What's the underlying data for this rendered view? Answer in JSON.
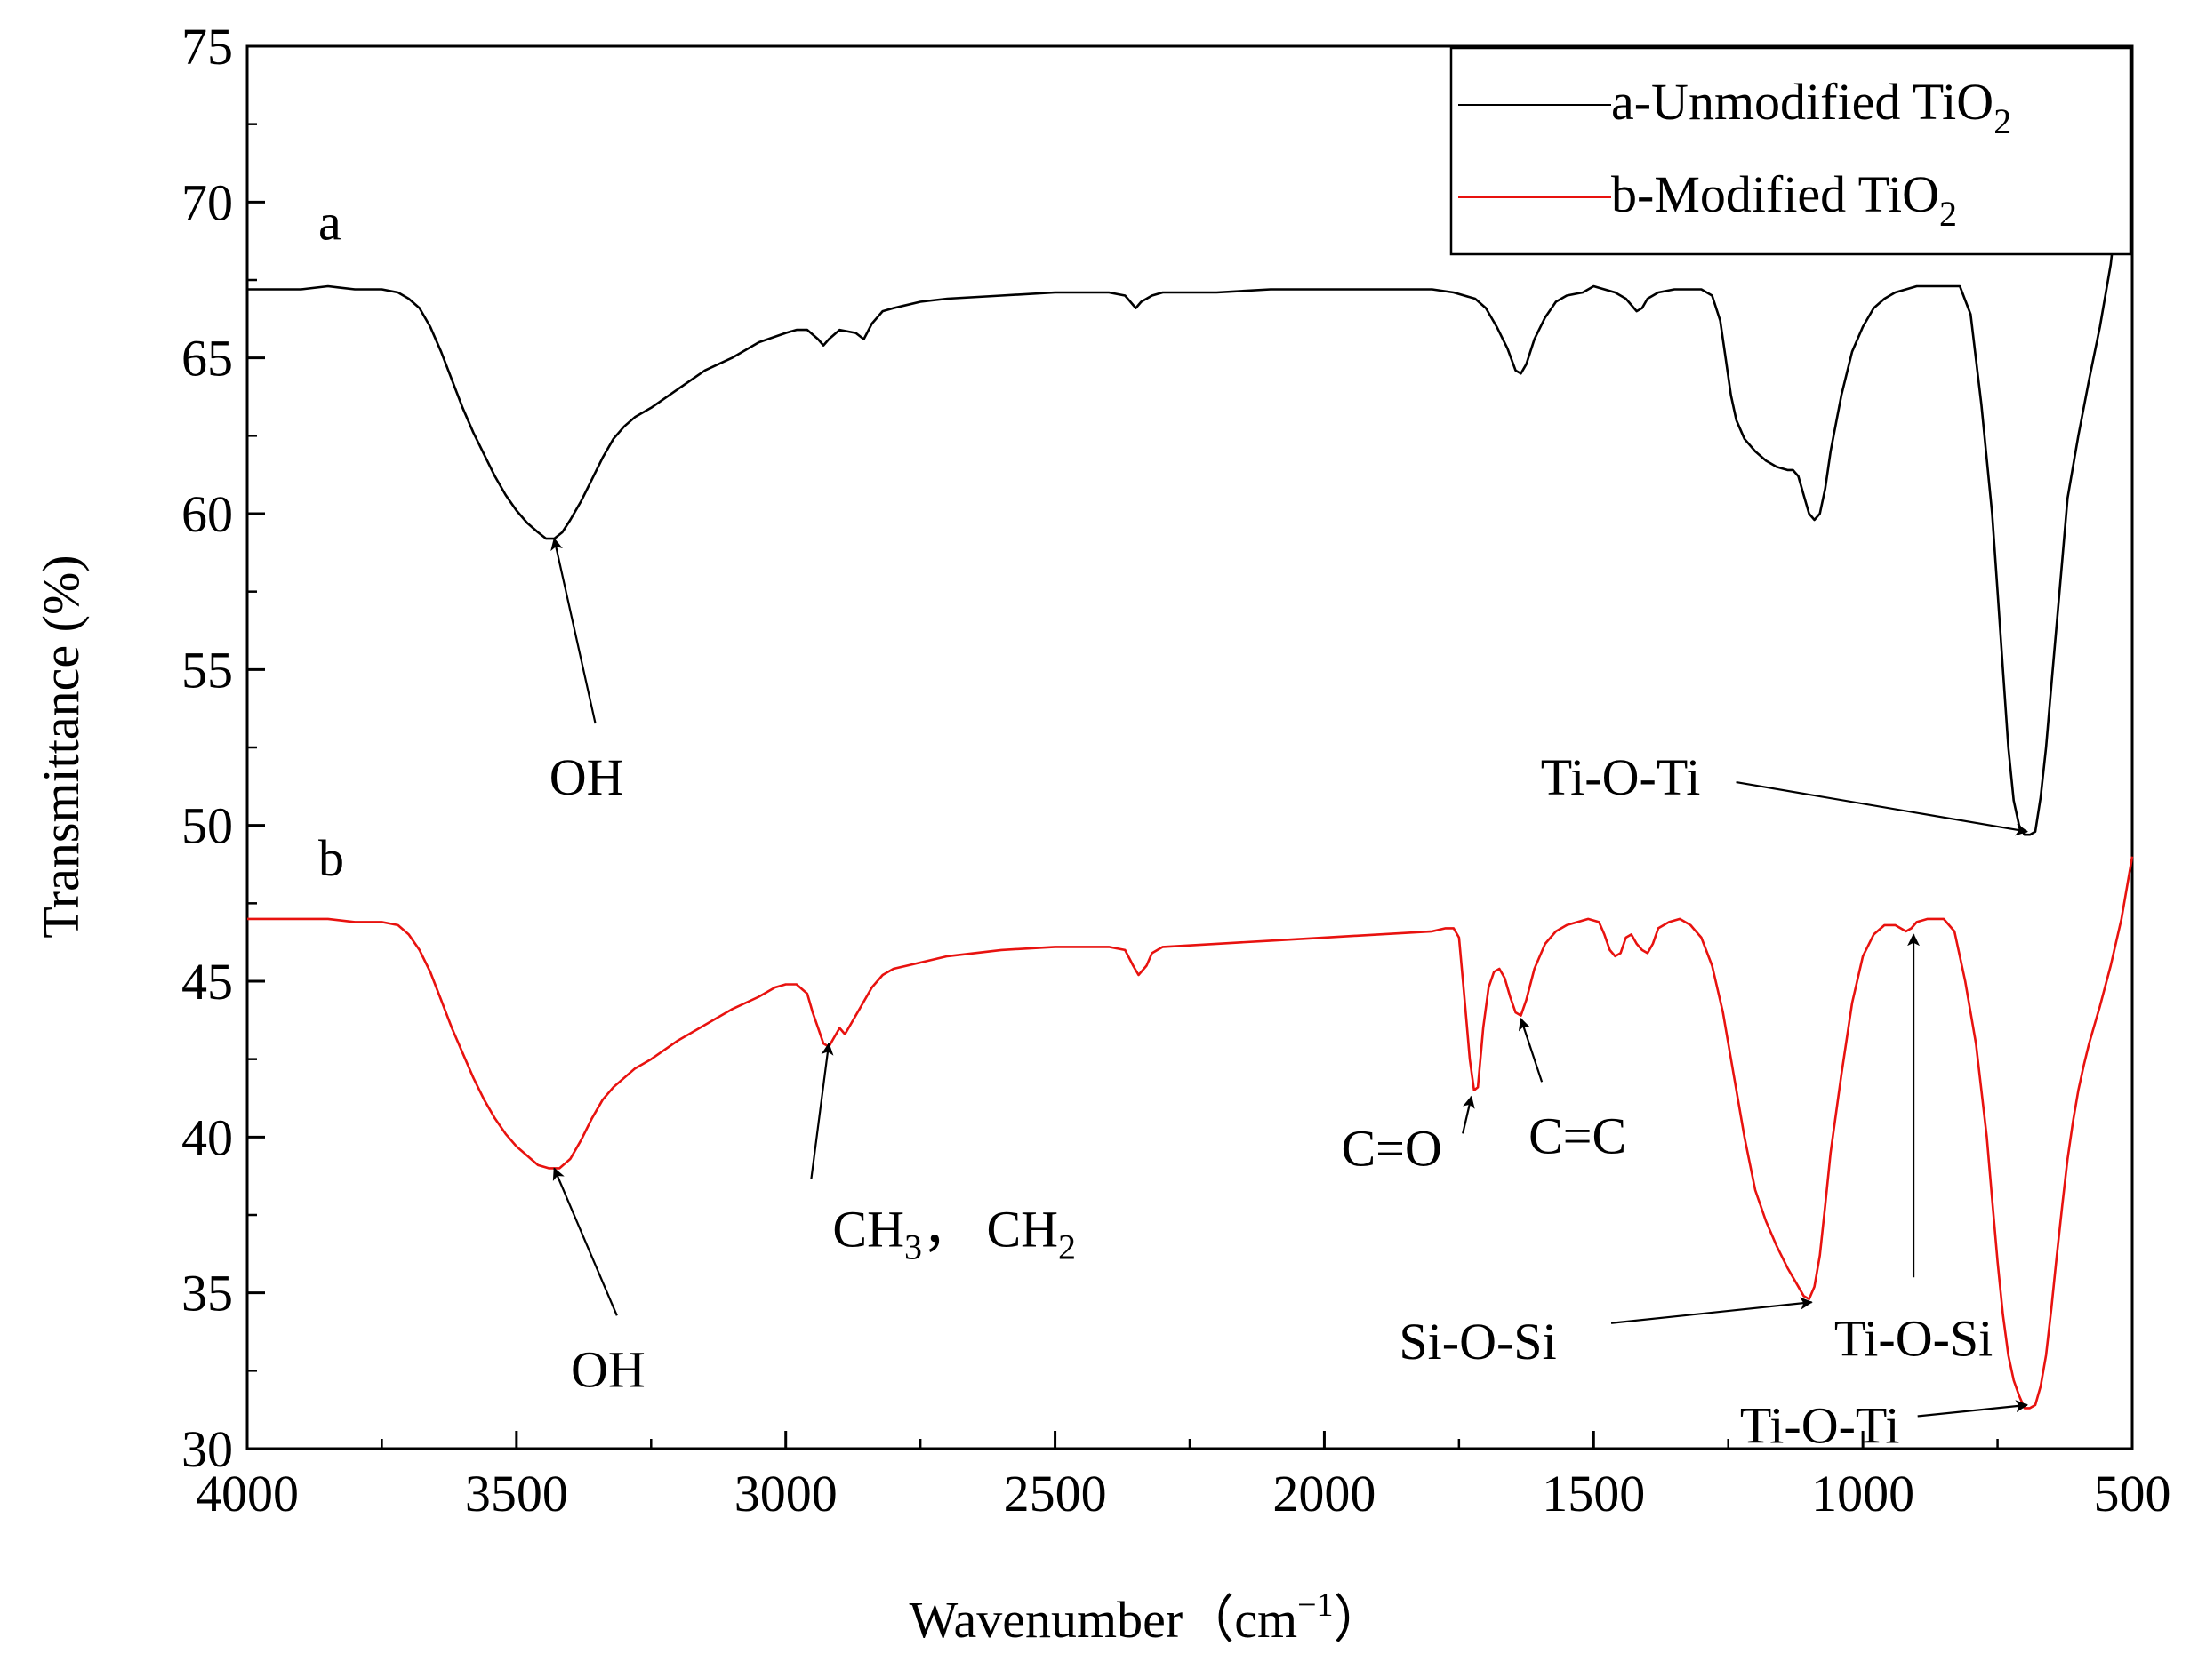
{
  "chart_data": {
    "type": "line",
    "xlabel": "Wavenumber（cm",
    "xlabel_sup": "−1",
    "xlabel_close": "）",
    "ylabel": "Transmittance (%)",
    "xlim": [
      4000,
      500
    ],
    "ylim": [
      30,
      75
    ],
    "x_ticks": [
      4000,
      3500,
      3000,
      2500,
      2000,
      1500,
      1000,
      500
    ],
    "y_ticks": [
      30,
      35,
      40,
      45,
      50,
      55,
      60,
      65,
      70,
      75
    ],
    "grid": false,
    "legend_position": "top-right",
    "series": [
      {
        "name": "a-Unmodified TiO",
        "name_sub": "2",
        "color": "#000000",
        "curve_label": "a",
        "points": [
          [
            4000,
            67.2
          ],
          [
            3900,
            67.2
          ],
          [
            3850,
            67.3
          ],
          [
            3800,
            67.2
          ],
          [
            3750,
            67.2
          ],
          [
            3720,
            67.1
          ],
          [
            3700,
            66.9
          ],
          [
            3680,
            66.6
          ],
          [
            3660,
            66.0
          ],
          [
            3640,
            65.2
          ],
          [
            3620,
            64.3
          ],
          [
            3600,
            63.4
          ],
          [
            3580,
            62.6
          ],
          [
            3560,
            61.9
          ],
          [
            3540,
            61.2
          ],
          [
            3520,
            60.6
          ],
          [
            3500,
            60.1
          ],
          [
            3480,
            59.7
          ],
          [
            3460,
            59.4
          ],
          [
            3445,
            59.2
          ],
          [
            3430,
            59.2
          ],
          [
            3415,
            59.4
          ],
          [
            3400,
            59.8
          ],
          [
            3380,
            60.4
          ],
          [
            3360,
            61.1
          ],
          [
            3340,
            61.8
          ],
          [
            3320,
            62.4
          ],
          [
            3300,
            62.8
          ],
          [
            3280,
            63.1
          ],
          [
            3250,
            63.4
          ],
          [
            3200,
            64.0
          ],
          [
            3150,
            64.6
          ],
          [
            3100,
            65.0
          ],
          [
            3050,
            65.5
          ],
          [
            3000,
            65.8
          ],
          [
            2980,
            65.9
          ],
          [
            2960,
            65.9
          ],
          [
            2940,
            65.6
          ],
          [
            2930,
            65.4
          ],
          [
            2920,
            65.6
          ],
          [
            2900,
            65.9
          ],
          [
            2870,
            65.8
          ],
          [
            2855,
            65.6
          ],
          [
            2840,
            66.1
          ],
          [
            2820,
            66.5
          ],
          [
            2800,
            66.6
          ],
          [
            2750,
            66.8
          ],
          [
            2700,
            66.9
          ],
          [
            2600,
            67.0
          ],
          [
            2500,
            67.1
          ],
          [
            2400,
            67.1
          ],
          [
            2370,
            67.0
          ],
          [
            2350,
            66.6
          ],
          [
            2340,
            66.8
          ],
          [
            2320,
            67.0
          ],
          [
            2300,
            67.1
          ],
          [
            2200,
            67.1
          ],
          [
            2100,
            67.2
          ],
          [
            2000,
            67.2
          ],
          [
            1900,
            67.2
          ],
          [
            1800,
            67.2
          ],
          [
            1760,
            67.1
          ],
          [
            1720,
            66.9
          ],
          [
            1700,
            66.6
          ],
          [
            1680,
            66.0
          ],
          [
            1660,
            65.3
          ],
          [
            1645,
            64.6
          ],
          [
            1635,
            64.5
          ],
          [
            1625,
            64.8
          ],
          [
            1610,
            65.6
          ],
          [
            1590,
            66.3
          ],
          [
            1570,
            66.8
          ],
          [
            1550,
            67.0
          ],
          [
            1520,
            67.1
          ],
          [
            1500,
            67.3
          ],
          [
            1480,
            67.2
          ],
          [
            1460,
            67.1
          ],
          [
            1440,
            66.9
          ],
          [
            1420,
            66.5
          ],
          [
            1410,
            66.6
          ],
          [
            1400,
            66.9
          ],
          [
            1380,
            67.1
          ],
          [
            1350,
            67.2
          ],
          [
            1320,
            67.2
          ],
          [
            1300,
            67.2
          ],
          [
            1280,
            67.0
          ],
          [
            1265,
            66.2
          ],
          [
            1255,
            65.0
          ],
          [
            1245,
            63.8
          ],
          [
            1235,
            63.0
          ],
          [
            1220,
            62.4
          ],
          [
            1200,
            62.0
          ],
          [
            1180,
            61.7
          ],
          [
            1160,
            61.5
          ],
          [
            1140,
            61.4
          ],
          [
            1130,
            61.4
          ],
          [
            1120,
            61.2
          ],
          [
            1110,
            60.6
          ],
          [
            1100,
            60.0
          ],
          [
            1090,
            59.8
          ],
          [
            1080,
            60.0
          ],
          [
            1070,
            60.8
          ],
          [
            1060,
            62.0
          ],
          [
            1040,
            63.8
          ],
          [
            1020,
            65.2
          ],
          [
            1000,
            66.0
          ],
          [
            980,
            66.6
          ],
          [
            960,
            66.9
          ],
          [
            940,
            67.1
          ],
          [
            920,
            67.2
          ],
          [
            900,
            67.3
          ],
          [
            850,
            67.3
          ],
          [
            820,
            67.3
          ],
          [
            800,
            66.4
          ],
          [
            780,
            63.5
          ],
          [
            760,
            60.0
          ],
          [
            750,
            57.5
          ],
          [
            740,
            55.0
          ],
          [
            730,
            52.5
          ],
          [
            720,
            50.8
          ],
          [
            710,
            50.0
          ],
          [
            700,
            49.7
          ],
          [
            690,
            49.7
          ],
          [
            680,
            49.8
          ],
          [
            670,
            50.9
          ],
          [
            660,
            52.5
          ],
          [
            650,
            54.5
          ],
          [
            640,
            56.5
          ],
          [
            630,
            58.5
          ],
          [
            620,
            60.5
          ],
          [
            600,
            62.5
          ],
          [
            580,
            64.3
          ],
          [
            560,
            66.0
          ],
          [
            540,
            68.0
          ],
          [
            520,
            71.0
          ],
          [
            500,
            75.0
          ]
        ]
      },
      {
        "name": "b-Modified  TiO",
        "name_sub": "2",
        "color": "#e8120f",
        "curve_label": "b",
        "points": [
          [
            4000,
            47.0
          ],
          [
            3900,
            47.0
          ],
          [
            3850,
            47.0
          ],
          [
            3800,
            46.9
          ],
          [
            3750,
            46.9
          ],
          [
            3720,
            46.8
          ],
          [
            3700,
            46.5
          ],
          [
            3680,
            46.0
          ],
          [
            3660,
            45.3
          ],
          [
            3640,
            44.4
          ],
          [
            3620,
            43.5
          ],
          [
            3600,
            42.7
          ],
          [
            3580,
            41.9
          ],
          [
            3560,
            41.2
          ],
          [
            3540,
            40.6
          ],
          [
            3520,
            40.1
          ],
          [
            3500,
            39.7
          ],
          [
            3480,
            39.4
          ],
          [
            3460,
            39.1
          ],
          [
            3440,
            39.0
          ],
          [
            3420,
            39.0
          ],
          [
            3400,
            39.3
          ],
          [
            3380,
            39.9
          ],
          [
            3360,
            40.6
          ],
          [
            3340,
            41.2
          ],
          [
            3320,
            41.6
          ],
          [
            3300,
            41.9
          ],
          [
            3280,
            42.2
          ],
          [
            3250,
            42.5
          ],
          [
            3200,
            43.1
          ],
          [
            3150,
            43.6
          ],
          [
            3100,
            44.1
          ],
          [
            3050,
            44.5
          ],
          [
            3020,
            44.8
          ],
          [
            3000,
            44.9
          ],
          [
            2980,
            44.9
          ],
          [
            2960,
            44.6
          ],
          [
            2950,
            44.0
          ],
          [
            2940,
            43.5
          ],
          [
            2930,
            43.0
          ],
          [
            2920,
            42.9
          ],
          [
            2910,
            43.2
          ],
          [
            2900,
            43.5
          ],
          [
            2890,
            43.3
          ],
          [
            2880,
            43.6
          ],
          [
            2860,
            44.2
          ],
          [
            2840,
            44.8
          ],
          [
            2820,
            45.2
          ],
          [
            2800,
            45.4
          ],
          [
            2750,
            45.6
          ],
          [
            2700,
            45.8
          ],
          [
            2600,
            46.0
          ],
          [
            2500,
            46.1
          ],
          [
            2400,
            46.1
          ],
          [
            2370,
            46.0
          ],
          [
            2355,
            45.5
          ],
          [
            2345,
            45.2
          ],
          [
            2330,
            45.5
          ],
          [
            2320,
            45.9
          ],
          [
            2300,
            46.1
          ],
          [
            2200,
            46.2
          ],
          [
            2100,
            46.3
          ],
          [
            2000,
            46.4
          ],
          [
            1900,
            46.5
          ],
          [
            1800,
            46.6
          ],
          [
            1775,
            46.7
          ],
          [
            1760,
            46.7
          ],
          [
            1750,
            46.4
          ],
          [
            1740,
            44.5
          ],
          [
            1730,
            42.5
          ],
          [
            1722,
            41.5
          ],
          [
            1715,
            41.6
          ],
          [
            1705,
            43.5
          ],
          [
            1695,
            44.8
          ],
          [
            1685,
            45.3
          ],
          [
            1675,
            45.4
          ],
          [
            1665,
            45.1
          ],
          [
            1655,
            44.5
          ],
          [
            1645,
            44.0
          ],
          [
            1635,
            43.9
          ],
          [
            1625,
            44.4
          ],
          [
            1610,
            45.4
          ],
          [
            1590,
            46.2
          ],
          [
            1570,
            46.6
          ],
          [
            1550,
            46.8
          ],
          [
            1530,
            46.9
          ],
          [
            1510,
            47.0
          ],
          [
            1490,
            46.9
          ],
          [
            1480,
            46.5
          ],
          [
            1470,
            46.0
          ],
          [
            1460,
            45.8
          ],
          [
            1450,
            45.9
          ],
          [
            1440,
            46.4
          ],
          [
            1430,
            46.5
          ],
          [
            1420,
            46.2
          ],
          [
            1410,
            46.0
          ],
          [
            1400,
            45.9
          ],
          [
            1390,
            46.2
          ],
          [
            1380,
            46.7
          ],
          [
            1360,
            46.9
          ],
          [
            1340,
            47.0
          ],
          [
            1320,
            46.8
          ],
          [
            1300,
            46.4
          ],
          [
            1280,
            45.5
          ],
          [
            1260,
            44.0
          ],
          [
            1240,
            42.0
          ],
          [
            1220,
            40.0
          ],
          [
            1200,
            38.3
          ],
          [
            1180,
            37.3
          ],
          [
            1160,
            36.5
          ],
          [
            1140,
            35.8
          ],
          [
            1120,
            35.2
          ],
          [
            1110,
            34.9
          ],
          [
            1100,
            34.8
          ],
          [
            1090,
            35.2
          ],
          [
            1080,
            36.2
          ],
          [
            1070,
            37.8
          ],
          [
            1060,
            39.5
          ],
          [
            1040,
            42.0
          ],
          [
            1020,
            44.3
          ],
          [
            1000,
            45.8
          ],
          [
            980,
            46.5
          ],
          [
            960,
            46.8
          ],
          [
            940,
            46.8
          ],
          [
            920,
            46.6
          ],
          [
            910,
            46.7
          ],
          [
            900,
            46.9
          ],
          [
            880,
            47.0
          ],
          [
            860,
            47.0
          ],
          [
            850,
            47.0
          ],
          [
            830,
            46.6
          ],
          [
            810,
            45.0
          ],
          [
            790,
            43.0
          ],
          [
            770,
            40.0
          ],
          [
            760,
            38.0
          ],
          [
            750,
            36.0
          ],
          [
            740,
            34.3
          ],
          [
            730,
            33.0
          ],
          [
            720,
            32.2
          ],
          [
            710,
            31.7
          ],
          [
            700,
            31.3
          ],
          [
            690,
            31.3
          ],
          [
            680,
            31.4
          ],
          [
            670,
            32.0
          ],
          [
            660,
            33.0
          ],
          [
            650,
            34.5
          ],
          [
            640,
            36.2
          ],
          [
            630,
            37.8
          ],
          [
            620,
            39.3
          ],
          [
            610,
            40.5
          ],
          [
            600,
            41.5
          ],
          [
            590,
            42.3
          ],
          [
            580,
            43.0
          ],
          [
            560,
            44.2
          ],
          [
            540,
            45.5
          ],
          [
            520,
            47.0
          ],
          [
            500,
            49.0
          ]
        ]
      }
    ],
    "annotations": [
      {
        "text": "OH",
        "tx": 3370,
        "ty": 51.5,
        "ax": 3430,
        "ay": 59.2
      },
      {
        "text": "Ti-O-Ti",
        "tx": 1450,
        "ty": 51.5,
        "ax": 695,
        "ay": 49.8
      },
      {
        "text": "OH",
        "tx": 3330,
        "ty": 32.5,
        "ax": 3430,
        "ay": 39.0
      },
      {
        "text": "CH",
        "sub": "3",
        "text2": "， CH",
        "sub2": "2",
        "tx": 2880,
        "ty": 37.0,
        "ax": 2920,
        "ay": 43.0
      },
      {
        "text": "C=O",
        "tx": 1875,
        "ty": 39.6,
        "ax": 1727,
        "ay": 41.3
      },
      {
        "text": "C=C",
        "tx": 1530,
        "ty": 40.0,
        "ax": 1635,
        "ay": 43.8
      },
      {
        "text": "Si-O-Si",
        "tx": 1715,
        "ty": 33.4,
        "ax": 1095,
        "ay": 34.7
      },
      {
        "text": "Ti-O-Si",
        "tx": 906,
        "ty": 33.5,
        "ax": 906,
        "ay": 46.5
      },
      {
        "text": "Ti-O-Ti",
        "tx": 1080,
        "ty": 30.7,
        "ax": 695,
        "ay": 31.4
      }
    ]
  }
}
